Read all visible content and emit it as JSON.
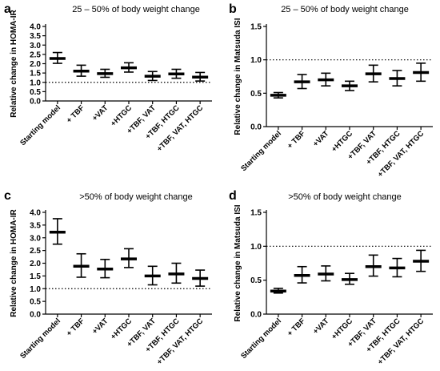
{
  "chart_data": [
    {
      "type": "errorbar",
      "panel_label": "a",
      "title": "25 – 50% of body weight change",
      "ylabel": "Relative change in HOMA-IR",
      "ylim": [
        0,
        4.0
      ],
      "yticks": [
        "0.0",
        "0.5",
        "1.0",
        "1.5",
        "2.0",
        "2.5",
        "3.0",
        "3.5",
        "4.0"
      ],
      "categories": [
        "Starting model",
        "+ TBF",
        "+VAT",
        "+HTGC",
        "+TBF, VAT",
        "+TBF, HTGC",
        "+TBF, VAT, HTGC"
      ],
      "mean": [
        2.28,
        1.6,
        1.47,
        1.78,
        1.33,
        1.45,
        1.28
      ],
      "low": [
        2.02,
        1.33,
        1.27,
        1.55,
        1.1,
        1.22,
        1.07
      ],
      "high": [
        2.6,
        1.92,
        1.7,
        2.05,
        1.58,
        1.7,
        1.53
      ],
      "reference_line": 1.0
    },
    {
      "type": "errorbar",
      "panel_label": "b",
      "title": "25 – 50% of body weight change",
      "ylabel": "Relative change in Matsuda ISI",
      "ylim": [
        0,
        1.5
      ],
      "yticks": [
        "0.0",
        "0.5",
        "1.0",
        "1.5"
      ],
      "categories": [
        "Starting model",
        "+ TBF",
        "+VAT",
        "+HTGC",
        "+TBF, VAT",
        "+TBF, HTGC",
        "+TBF, VAT, HTGC"
      ],
      "mean": [
        0.47,
        0.67,
        0.7,
        0.61,
        0.79,
        0.72,
        0.81
      ],
      "low": [
        0.43,
        0.57,
        0.61,
        0.54,
        0.67,
        0.61,
        0.68
      ],
      "high": [
        0.51,
        0.78,
        0.8,
        0.68,
        0.92,
        0.84,
        0.95
      ],
      "reference_line": 1.0
    },
    {
      "type": "errorbar",
      "panel_label": "c",
      "title": ">50% of body weight change",
      "ylabel": "Relative change in HOMA-IR",
      "ylim": [
        0,
        4.0
      ],
      "yticks": [
        "0.0",
        "0.5",
        "1.0",
        "1.5",
        "2.0",
        "2.5",
        "3.0",
        "3.5",
        "4.0"
      ],
      "categories": [
        "Starting model",
        "+ TBF",
        "+VAT",
        "+HTGC",
        "+TBF, VAT",
        "+TBF, HTGC",
        "+TBF, VAT, HTGC"
      ],
      "mean": [
        3.22,
        1.88,
        1.77,
        2.17,
        1.5,
        1.58,
        1.4
      ],
      "low": [
        2.75,
        1.45,
        1.43,
        1.83,
        1.15,
        1.22,
        1.1
      ],
      "high": [
        3.75,
        2.37,
        2.15,
        2.57,
        1.88,
        2.0,
        1.73
      ],
      "reference_line": 1.0
    },
    {
      "type": "errorbar",
      "panel_label": "d",
      "title": ">50% of body weight change",
      "ylabel": "Relative change in Matsuda ISI",
      "ylim": [
        0,
        1.5
      ],
      "yticks": [
        "0.0",
        "0.5",
        "1.0",
        "1.5"
      ],
      "categories": [
        "Starting model",
        "+ TBF",
        "+VAT",
        "+HTGC",
        "+TBF, VAT",
        "+TBF, HTGC",
        "+TBF, VAT, HTGC"
      ],
      "mean": [
        0.34,
        0.57,
        0.59,
        0.51,
        0.7,
        0.68,
        0.78
      ],
      "low": [
        0.31,
        0.46,
        0.49,
        0.44,
        0.56,
        0.55,
        0.63
      ],
      "high": [
        0.38,
        0.7,
        0.71,
        0.6,
        0.87,
        0.82,
        0.94
      ],
      "reference_line": 1.0
    }
  ]
}
